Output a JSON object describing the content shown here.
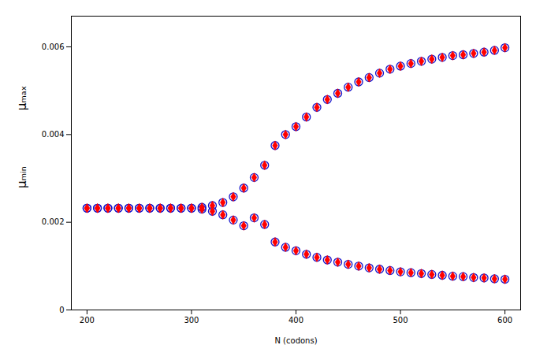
{
  "chart_data": {
    "type": "scatter",
    "xlabel": "N (codons)",
    "xlim": [
      185,
      615
    ],
    "ylim": [
      0,
      0.0067
    ],
    "xticks": [
      200,
      300,
      400,
      500,
      600
    ],
    "yticks": [
      0,
      0.002,
      0.004,
      0.006
    ],
    "grid": false,
    "annotations": [
      {
        "text": "μₘₐₓ",
        "axis": "y"
      },
      {
        "text": "μₘᵢₙ",
        "axis": "y"
      }
    ],
    "series": [
      {
        "marker": "circle_open",
        "color": "#1515CC",
        "x": [
          200,
          210,
          220,
          230,
          240,
          250,
          260,
          270,
          280,
          290,
          300,
          310,
          320,
          330,
          340,
          350,
          360,
          370,
          380,
          390,
          400,
          410,
          420,
          430,
          440,
          450,
          460,
          470,
          480,
          490,
          500,
          510,
          520,
          530,
          540,
          550,
          560,
          570,
          580,
          590,
          600
        ],
        "values": [
          0.00232,
          0.00232,
          0.00232,
          0.00232,
          0.00232,
          0.00232,
          0.00232,
          0.00232,
          0.00232,
          0.00232,
          0.00232,
          0.00234,
          0.00238,
          0.00245,
          0.00258,
          0.00278,
          0.00302,
          0.0033,
          0.00375,
          0.004,
          0.00418,
          0.0044,
          0.00462,
          0.0048,
          0.00494,
          0.00508,
          0.0052,
          0.0053,
          0.0054,
          0.00549,
          0.00556,
          0.00562,
          0.00567,
          0.00572,
          0.00576,
          0.0058,
          0.00582,
          0.00585,
          0.00588,
          0.00592,
          0.00598
        ]
      },
      {
        "marker": "circle_open",
        "color": "#1515CC",
        "x": [
          200,
          210,
          220,
          230,
          240,
          250,
          260,
          270,
          280,
          290,
          300,
          310,
          320,
          330,
          340,
          350,
          360,
          370,
          380,
          390,
          400,
          410,
          420,
          430,
          440,
          450,
          460,
          470,
          480,
          490,
          500,
          510,
          520,
          530,
          540,
          550,
          560,
          570,
          580,
          590,
          600
        ],
        "values": [
          0.00232,
          0.00232,
          0.00232,
          0.00232,
          0.00232,
          0.00232,
          0.00232,
          0.00232,
          0.00232,
          0.00232,
          0.00232,
          0.0023,
          0.00225,
          0.00217,
          0.00205,
          0.00192,
          0.0021,
          0.00195,
          0.00155,
          0.00143,
          0.00135,
          0.00127,
          0.0012,
          0.00114,
          0.00109,
          0.00104,
          0.001,
          0.00096,
          0.00093,
          0.0009,
          0.00087,
          0.00085,
          0.00083,
          0.00081,
          0.00079,
          0.00077,
          0.00076,
          0.00074,
          0.00073,
          0.00071,
          0.0007
        ]
      },
      {
        "marker": "diamond",
        "color": "#FF0000",
        "x": [
          200,
          210,
          220,
          230,
          240,
          250,
          260,
          270,
          280,
          290,
          300,
          310,
          320,
          330,
          340,
          350,
          360,
          370,
          380,
          390,
          400,
          410,
          420,
          430,
          440,
          450,
          460,
          470,
          480,
          490,
          500,
          510,
          520,
          530,
          540,
          550,
          560,
          570,
          580,
          590,
          600
        ],
        "values": [
          0.00232,
          0.00232,
          0.00232,
          0.00232,
          0.00232,
          0.00232,
          0.00232,
          0.00232,
          0.00232,
          0.00232,
          0.00232,
          0.00234,
          0.00238,
          0.00245,
          0.00258,
          0.00278,
          0.00302,
          0.0033,
          0.00375,
          0.004,
          0.00418,
          0.0044,
          0.00462,
          0.0048,
          0.00494,
          0.00508,
          0.0052,
          0.0053,
          0.0054,
          0.00549,
          0.00556,
          0.00562,
          0.00567,
          0.00572,
          0.00576,
          0.0058,
          0.00582,
          0.00585,
          0.00588,
          0.00592,
          0.00598
        ]
      },
      {
        "marker": "diamond",
        "color": "#FF0000",
        "x": [
          200,
          210,
          220,
          230,
          240,
          250,
          260,
          270,
          280,
          290,
          300,
          310,
          320,
          330,
          340,
          350,
          360,
          370,
          380,
          390,
          400,
          410,
          420,
          430,
          440,
          450,
          460,
          470,
          480,
          490,
          500,
          510,
          520,
          530,
          540,
          550,
          560,
          570,
          580,
          590,
          600
        ],
        "values": [
          0.00232,
          0.00232,
          0.00232,
          0.00232,
          0.00232,
          0.00232,
          0.00232,
          0.00232,
          0.00232,
          0.00232,
          0.00232,
          0.0023,
          0.00225,
          0.00217,
          0.00205,
          0.00192,
          0.0021,
          0.00195,
          0.00155,
          0.00143,
          0.00135,
          0.00127,
          0.0012,
          0.00114,
          0.00109,
          0.00104,
          0.001,
          0.00096,
          0.00093,
          0.0009,
          0.00087,
          0.00085,
          0.00083,
          0.00081,
          0.00079,
          0.00077,
          0.00076,
          0.00074,
          0.00073,
          0.00071,
          0.0007
        ]
      }
    ]
  }
}
